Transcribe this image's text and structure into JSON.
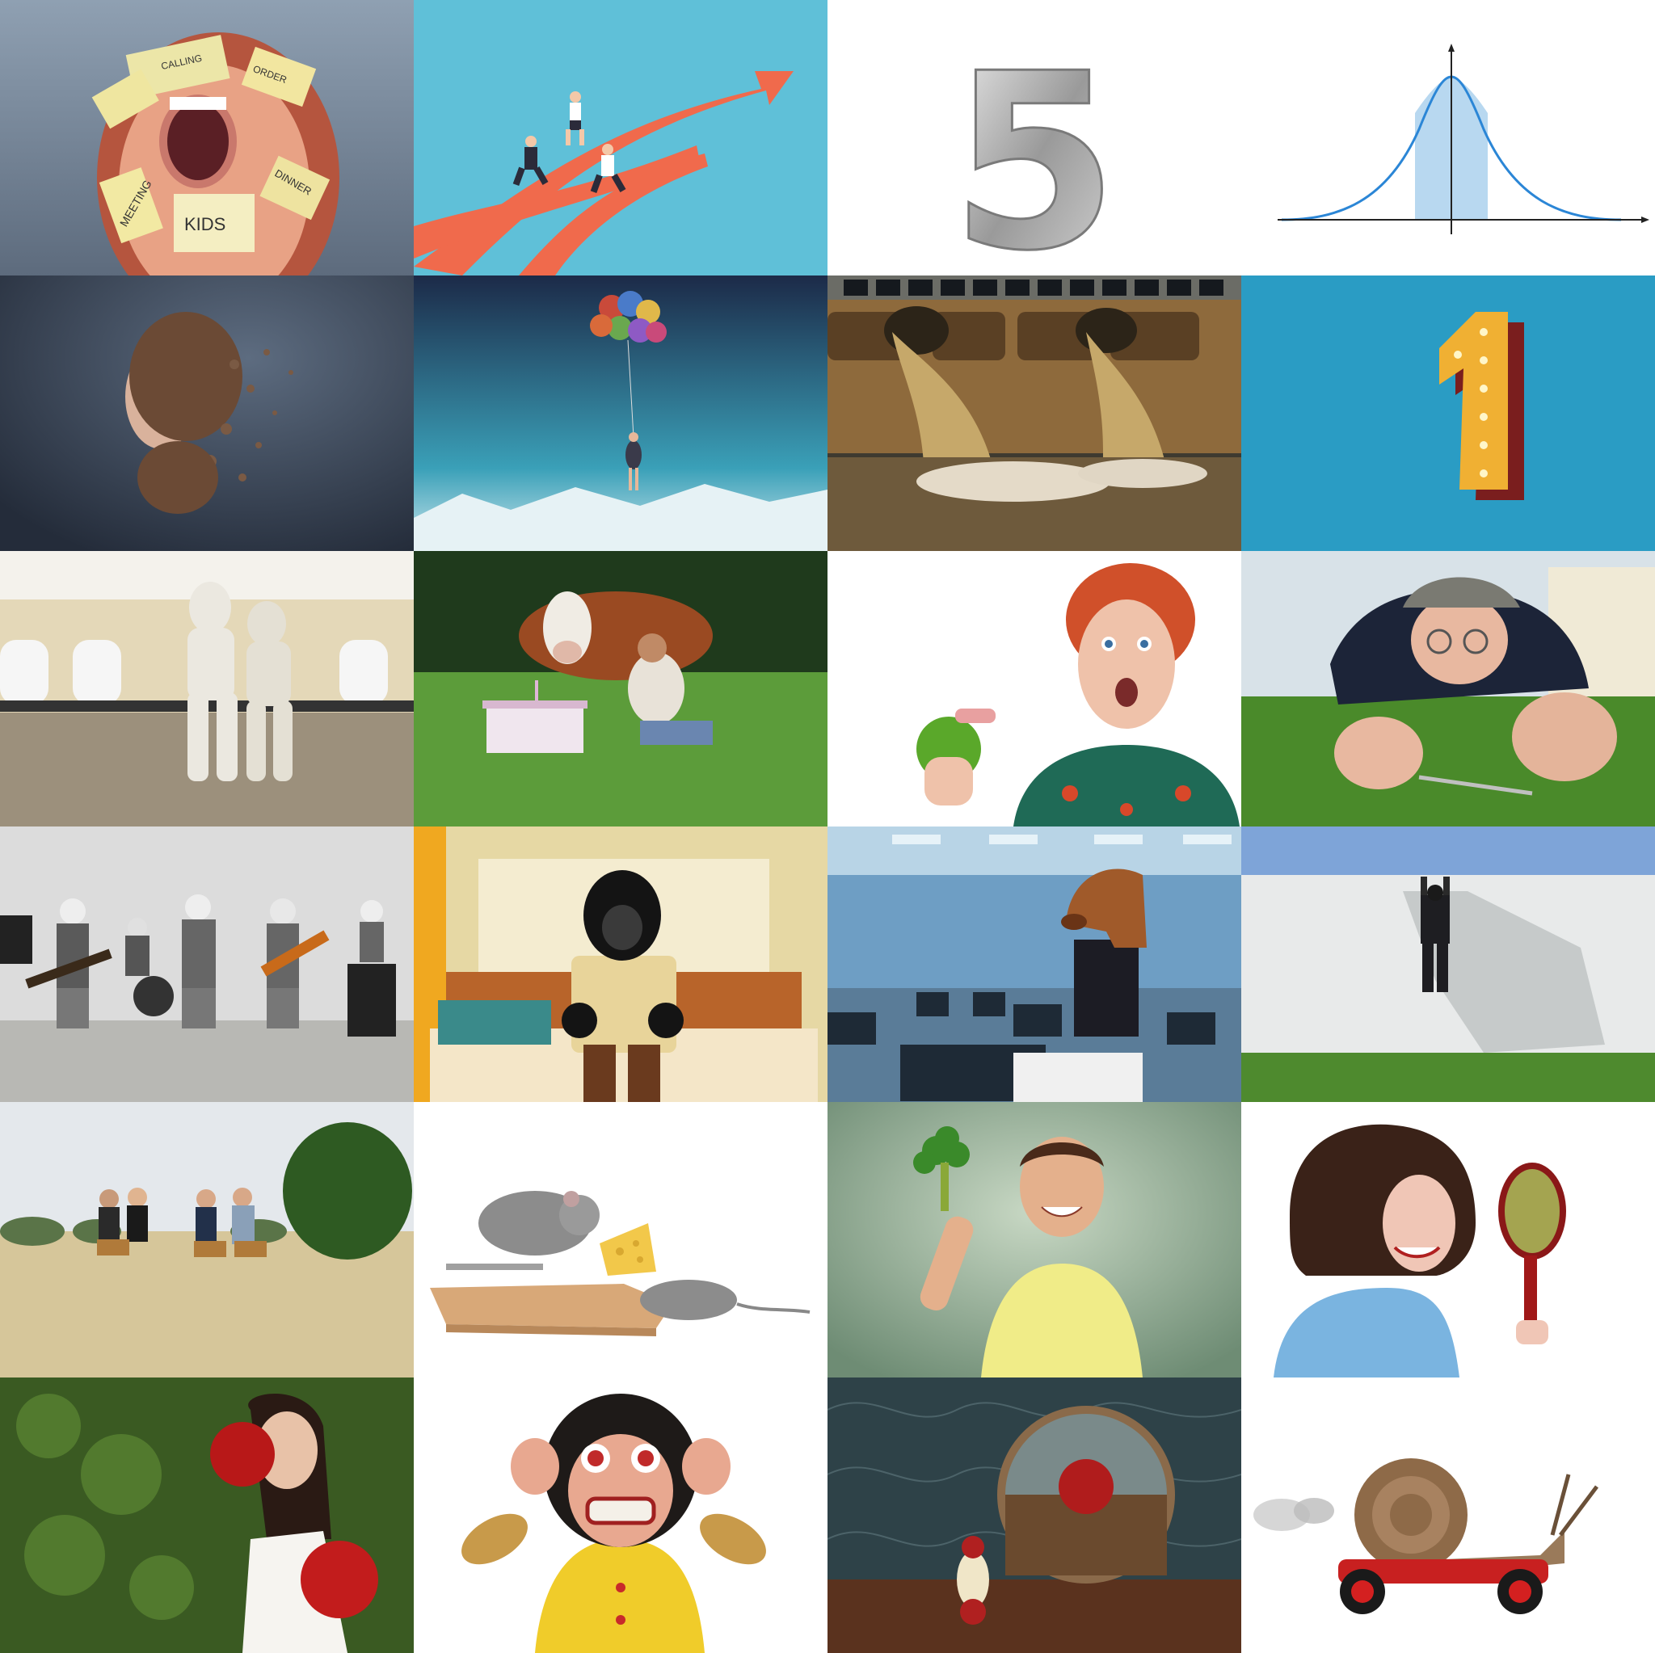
{
  "collage": {
    "columns": 4,
    "rows": 6,
    "tiles": [
      {
        "id": "sticky-notes-face",
        "notes": [
          "MEETING",
          "KIDS",
          "DINNER",
          "ORDER",
          "CALLING"
        ]
      },
      {
        "id": "arrow-runners",
        "colors": {
          "bg": "#5fc0d8",
          "arrow": "#f06a4c"
        }
      },
      {
        "id": "number-five",
        "digit": "5"
      },
      {
        "id": "bell-curve",
        "colors": {
          "curve": "#2b86d6",
          "fill": "#b8d8f0"
        }
      },
      {
        "id": "disintegrating-woman"
      },
      {
        "id": "balloon-girl"
      },
      {
        "id": "sewage-pipes"
      },
      {
        "id": "marquee-number-one",
        "digit": "1"
      },
      {
        "id": "mummies-waiting-room"
      },
      {
        "id": "cow-dinner"
      },
      {
        "id": "woman-dentures-apple"
      },
      {
        "id": "man-cutting-grass"
      },
      {
        "id": "grandma-rock-band"
      },
      {
        "id": "gorilla-bed"
      },
      {
        "id": "horse-head-office"
      },
      {
        "id": "man-climbing-wall"
      },
      {
        "id": "field-meeting"
      },
      {
        "id": "mousetrap-cheese"
      },
      {
        "id": "broccoli-boy"
      },
      {
        "id": "mirror-reflection-woman"
      },
      {
        "id": "bride-boxing"
      },
      {
        "id": "cymbal-monkey"
      },
      {
        "id": "apple-mirror"
      },
      {
        "id": "speedy-snail"
      }
    ]
  }
}
